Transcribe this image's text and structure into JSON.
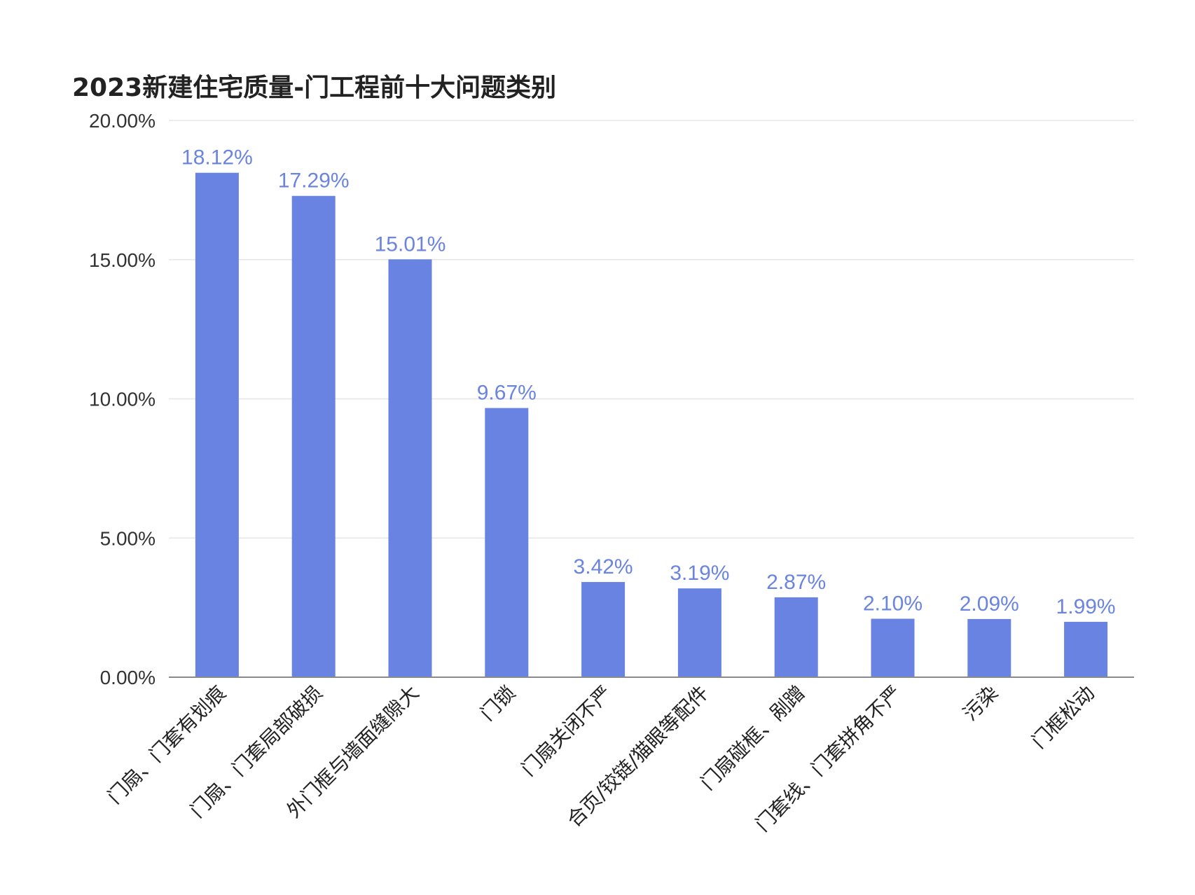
{
  "chart_data": {
    "type": "bar",
    "title": "2023新建住宅质量-门工程前十大问题类别",
    "xlabel": "",
    "ylabel": "",
    "ylim": [
      0,
      20
    ],
    "yticks": [
      "0.00%",
      "5.00%",
      "10.00%",
      "15.00%",
      "20.00%"
    ],
    "grid": true,
    "legend": "none",
    "bar_color": "#6883e1",
    "label_color": "#6a84e0",
    "categories": [
      "门扇、门套有划痕",
      "门扇、门套局部破损",
      "外门框与墙面缝隙大",
      "门锁",
      "门扇关闭不严",
      "合页/铰链/猫眼等配件",
      "门扇碰框、剐蹭",
      "门套线、门套拼角不严",
      "污染",
      "门框松动"
    ],
    "values": [
      18.12,
      17.29,
      15.01,
      9.67,
      3.42,
      3.19,
      2.87,
      2.1,
      2.09,
      1.99
    ],
    "data_labels": [
      "18.12%",
      "17.29%",
      "15.01%",
      "9.67%",
      "3.42%",
      "3.19%",
      "2.87%",
      "2.10%",
      "2.09%",
      "1.99%"
    ]
  }
}
